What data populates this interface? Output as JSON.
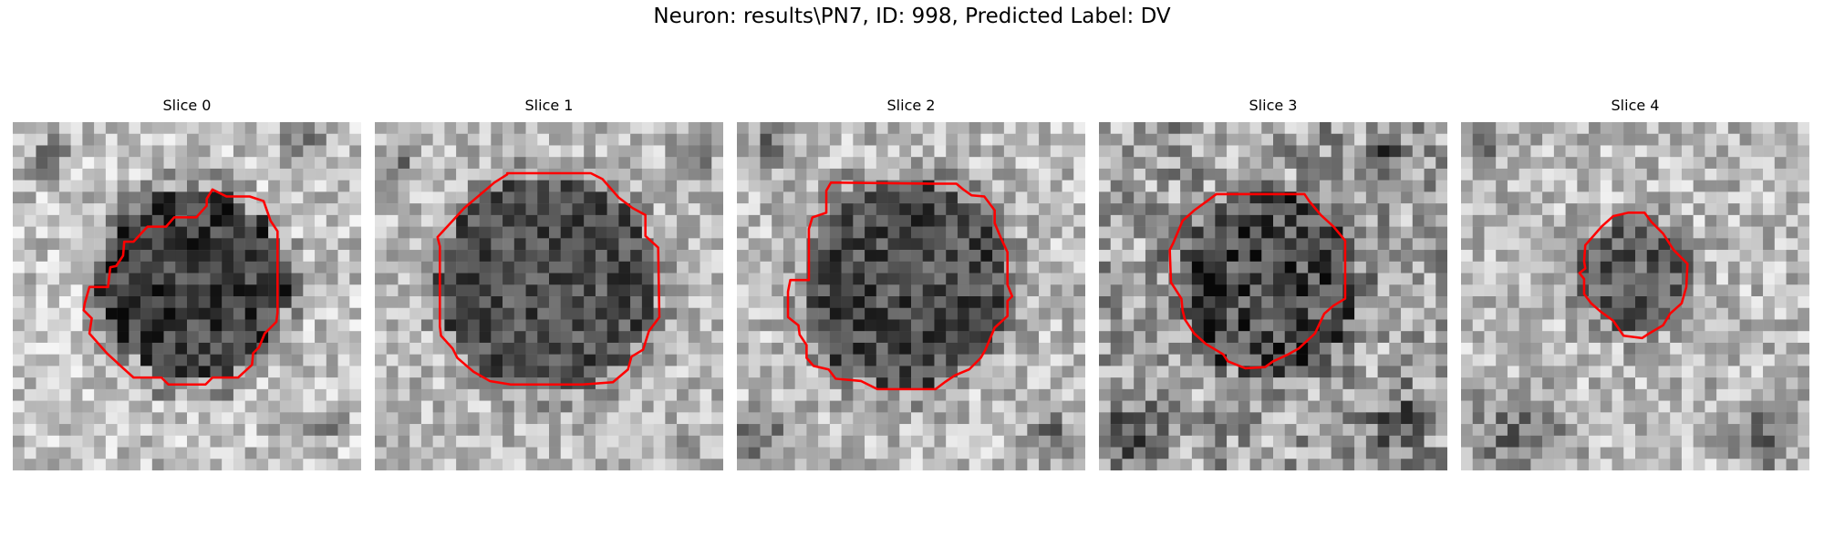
{
  "figure": {
    "title": "Neuron: results\\PN7, ID: 998, Predicted Label: DV"
  },
  "panels": [
    {
      "title": "Slice 0",
      "contour": [
        [
          17.2,
          5.8
        ],
        [
          16.7,
          6.6
        ],
        [
          16.7,
          7.2
        ],
        [
          15.8,
          8.2
        ],
        [
          13.9,
          8.2
        ],
        [
          13.2,
          9.0
        ],
        [
          11.6,
          9.0
        ],
        [
          10.4,
          10.3
        ],
        [
          9.6,
          10.3
        ],
        [
          9.5,
          11.5
        ],
        [
          8.9,
          12.4
        ],
        [
          8.4,
          12.5
        ],
        [
          8.2,
          14.2
        ],
        [
          6.6,
          14.2
        ],
        [
          6.2,
          15.6
        ],
        [
          6.1,
          16.2
        ],
        [
          6.8,
          16.9
        ],
        [
          6.6,
          18.2
        ],
        [
          8.1,
          19.9
        ],
        [
          9.4,
          21.1
        ],
        [
          10.4,
          22.0
        ],
        [
          12.8,
          22.0
        ],
        [
          13.4,
          22.6
        ],
        [
          16.6,
          22.6
        ],
        [
          17.2,
          22.0
        ],
        [
          19.4,
          22.0
        ],
        [
          20.6,
          20.9
        ],
        [
          20.7,
          19.9
        ],
        [
          21.2,
          19.4
        ],
        [
          21.7,
          18.2
        ],
        [
          22.7,
          17.2
        ],
        [
          22.8,
          16.4
        ],
        [
          22.8,
          9.4
        ],
        [
          22.2,
          8.5
        ],
        [
          21.6,
          6.8
        ],
        [
          20.4,
          6.4
        ],
        [
          18.4,
          6.4
        ]
      ],
      "image_url_placeholder": "grayscale-neuron-slice-0"
    },
    {
      "title": "Slice 1",
      "contour": [
        [
          11.4,
          4.5
        ],
        [
          10.3,
          5.2
        ],
        [
          7.7,
          7.4
        ],
        [
          6.6,
          8.6
        ],
        [
          5.4,
          9.9
        ],
        [
          5.6,
          10.7
        ],
        [
          5.6,
          17.6
        ],
        [
          5.7,
          18.4
        ],
        [
          6.7,
          19.5
        ],
        [
          7.1,
          20.3
        ],
        [
          8.5,
          21.5
        ],
        [
          9.9,
          22.3
        ],
        [
          11.7,
          22.6
        ],
        [
          17.9,
          22.6
        ],
        [
          20.5,
          22.4
        ],
        [
          21.8,
          21.3
        ],
        [
          22.1,
          20.2
        ],
        [
          23.1,
          19.6
        ],
        [
          23.6,
          18.0
        ],
        [
          24.5,
          16.8
        ],
        [
          24.4,
          10.8
        ],
        [
          23.3,
          9.8
        ],
        [
          23.3,
          8.0
        ],
        [
          22.2,
          7.4
        ],
        [
          21.0,
          6.5
        ],
        [
          19.6,
          4.9
        ],
        [
          18.6,
          4.4
        ],
        [
          11.4,
          4.4
        ]
      ],
      "image_url_placeholder": "grayscale-neuron-slice-1"
    },
    {
      "title": "Slice 2",
      "contour": [
        [
          8.1,
          5.2
        ],
        [
          7.7,
          5.9
        ],
        [
          7.7,
          7.8
        ],
        [
          6.5,
          8.2
        ],
        [
          6.2,
          9.2
        ],
        [
          6.2,
          13.6
        ],
        [
          4.6,
          13.6
        ],
        [
          4.4,
          14.6
        ],
        [
          4.4,
          16.8
        ],
        [
          5.3,
          17.5
        ],
        [
          5.4,
          18.3
        ],
        [
          6.0,
          19.2
        ],
        [
          6.0,
          20.3
        ],
        [
          6.6,
          21.0
        ],
        [
          7.9,
          21.3
        ],
        [
          8.5,
          22.1
        ],
        [
          10.7,
          22.3
        ],
        [
          12.1,
          23.0
        ],
        [
          17.1,
          23.0
        ],
        [
          17.9,
          22.4
        ],
        [
          18.8,
          21.8
        ],
        [
          20.0,
          21.3
        ],
        [
          21.0,
          20.3
        ],
        [
          21.4,
          19.6
        ],
        [
          21.7,
          18.9
        ],
        [
          22.2,
          17.7
        ],
        [
          23.3,
          16.7
        ],
        [
          23.3,
          15.4
        ],
        [
          23.7,
          15.0
        ],
        [
          23.3,
          14.0
        ],
        [
          23.3,
          11.2
        ],
        [
          22.7,
          9.9
        ],
        [
          22.2,
          8.7
        ],
        [
          22.2,
          7.6
        ],
        [
          21.3,
          6.4
        ],
        [
          20.2,
          6.3
        ],
        [
          19.5,
          5.8
        ],
        [
          18.9,
          5.3
        ],
        [
          16.7,
          5.3
        ]
      ],
      "image_url_placeholder": "grayscale-neuron-slice-2"
    },
    {
      "title": "Slice 3",
      "contour": [
        [
          10.1,
          6.2
        ],
        [
          9.3,
          6.8
        ],
        [
          8.2,
          7.6
        ],
        [
          7.2,
          8.5
        ],
        [
          6.4,
          10.4
        ],
        [
          6.1,
          11.0
        ],
        [
          6.2,
          13.8
        ],
        [
          7.1,
          15.2
        ],
        [
          7.2,
          16.2
        ],
        [
          7.4,
          17.0
        ],
        [
          8.2,
          18.2
        ],
        [
          9.2,
          19.1
        ],
        [
          10.7,
          20.0
        ],
        [
          11.1,
          20.6
        ],
        [
          12.6,
          21.2
        ],
        [
          14.3,
          21.1
        ],
        [
          15.0,
          20.6
        ],
        [
          16.3,
          20.0
        ],
        [
          17.2,
          19.5
        ],
        [
          18.6,
          18.2
        ],
        [
          19.4,
          16.5
        ],
        [
          20.2,
          15.8
        ],
        [
          21.2,
          15.2
        ],
        [
          21.2,
          10.2
        ],
        [
          20.2,
          9.0
        ],
        [
          19.1,
          8.0
        ],
        [
          18.1,
          6.8
        ],
        [
          17.7,
          6.2
        ]
      ],
      "image_url_placeholder": "grayscale-neuron-slice-3"
    },
    {
      "title": "Slice 4",
      "contour": [
        [
          14.4,
          7.8
        ],
        [
          13.1,
          8.1
        ],
        [
          12.1,
          9.0
        ],
        [
          11.4,
          9.8
        ],
        [
          10.7,
          10.6
        ],
        [
          10.6,
          12.0
        ],
        [
          10.7,
          12.6
        ],
        [
          10.2,
          13.0
        ],
        [
          10.6,
          13.5
        ],
        [
          10.6,
          14.8
        ],
        [
          11.2,
          15.6
        ],
        [
          12.0,
          16.3
        ],
        [
          13.1,
          17.1
        ],
        [
          14.0,
          18.4
        ],
        [
          15.6,
          18.6
        ],
        [
          16.2,
          18.2
        ],
        [
          17.4,
          17.5
        ],
        [
          18.0,
          16.5
        ],
        [
          19.0,
          15.6
        ],
        [
          19.4,
          14.2
        ],
        [
          19.5,
          12.2
        ],
        [
          18.3,
          11.0
        ],
        [
          17.4,
          9.6
        ],
        [
          16.4,
          8.6
        ],
        [
          15.8,
          7.8
        ]
      ],
      "image_url_placeholder": "grayscale-neuron-slice-4"
    }
  ]
}
